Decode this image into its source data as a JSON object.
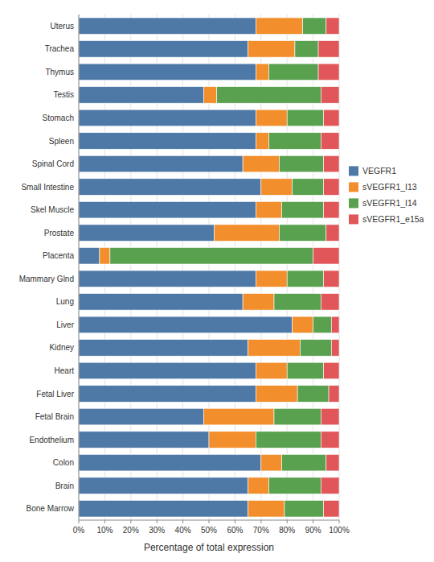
{
  "chart_data": {
    "type": "bar",
    "orientation": "horizontal",
    "stacked": true,
    "xlabel": "Percentage of total expression",
    "categories": [
      "Uterus",
      "Trachea",
      "Thymus",
      "Testis",
      "Stomach",
      "Spleen",
      "Spinal Cord",
      "Small Intestine",
      "Skel Muscle",
      "Prostate",
      "Placenta",
      "Mammary Glnd",
      "Lung",
      "Liver",
      "Kidney",
      "Heart",
      "Fetal Liver",
      "Fetal Brain",
      "Endothelium",
      "Colon",
      "Brain",
      "Bone Marrow"
    ],
    "series": [
      {
        "name": "VEGFR1",
        "values": [
          68,
          65,
          68,
          48,
          68,
          68,
          63,
          70,
          68,
          52,
          8,
          68,
          63,
          82,
          65,
          68,
          68,
          48,
          50,
          70,
          65,
          65
        ]
      },
      {
        "name": "sVEGFR1_I13",
        "values": [
          18,
          18,
          5,
          5,
          12,
          5,
          14,
          12,
          10,
          25,
          4,
          12,
          12,
          8,
          20,
          12,
          16,
          27,
          18,
          8,
          8,
          14
        ]
      },
      {
        "name": "sVEGFR1_I14",
        "values": [
          9,
          9,
          19,
          40,
          14,
          20,
          17,
          12,
          16,
          18,
          78,
          14,
          18,
          7,
          12,
          14,
          12,
          18,
          25,
          17,
          20,
          15
        ]
      },
      {
        "name": "sVEGFR1_e15a",
        "values": [
          5,
          8,
          8,
          7,
          6,
          7,
          6,
          6,
          6,
          5,
          10,
          6,
          7,
          3,
          3,
          6,
          4,
          7,
          7,
          5,
          7,
          6
        ]
      }
    ],
    "xlim": [
      0,
      100
    ],
    "xticks": [
      {
        "value": 0,
        "label": "0%"
      },
      {
        "value": 10,
        "label": "10%"
      },
      {
        "value": 20,
        "label": "20%"
      },
      {
        "value": 30,
        "label": "30%"
      },
      {
        "value": 40,
        "label": "40%"
      },
      {
        "value": 50,
        "label": "50%"
      },
      {
        "value": 60,
        "label": "60%"
      },
      {
        "value": 70,
        "label": "70%"
      },
      {
        "value": 80,
        "label": "80%"
      },
      {
        "value": 90,
        "label": "90%"
      },
      {
        "value": 100,
        "label": "100%"
      }
    ],
    "grid": true,
    "legend": "right"
  }
}
